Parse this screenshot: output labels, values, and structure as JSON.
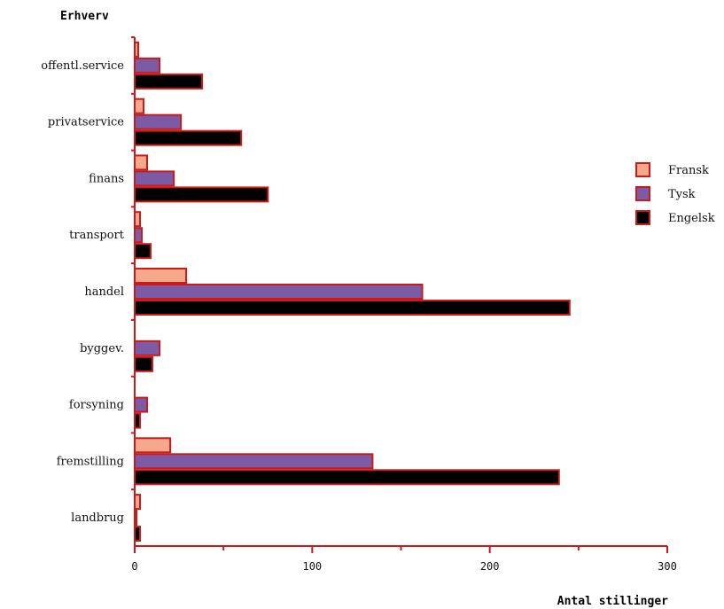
{
  "chart_data": {
    "type": "bar",
    "orientation": "horizontal",
    "title": "",
    "ylabel": "Erhverv",
    "xlabel": "Antal stillinger",
    "categories": [
      "landbrug",
      "fremstilling",
      "forsyning",
      "byggev.",
      "handel",
      "transport",
      "finans",
      "privatservice",
      "offentl.service"
    ],
    "series": [
      {
        "name": "Fransk",
        "color": "#f5a98a",
        "values": [
          3,
          20,
          0,
          0,
          29,
          3,
          7,
          5,
          2
        ]
      },
      {
        "name": "Tysk",
        "color": "#7b5aa6",
        "values": [
          1,
          134,
          7,
          14,
          162,
          4,
          22,
          26,
          14
        ]
      },
      {
        "name": "Engelsk",
        "color": "#000000",
        "values": [
          3,
          239,
          3,
          10,
          245,
          9,
          75,
          60,
          38
        ]
      }
    ],
    "xlim": [
      0,
      300
    ],
    "xticks": [
      "0",
      "100",
      "200",
      "300"
    ],
    "edge_color": "#cc1a1a",
    "grid": false,
    "legend_position": "right"
  }
}
